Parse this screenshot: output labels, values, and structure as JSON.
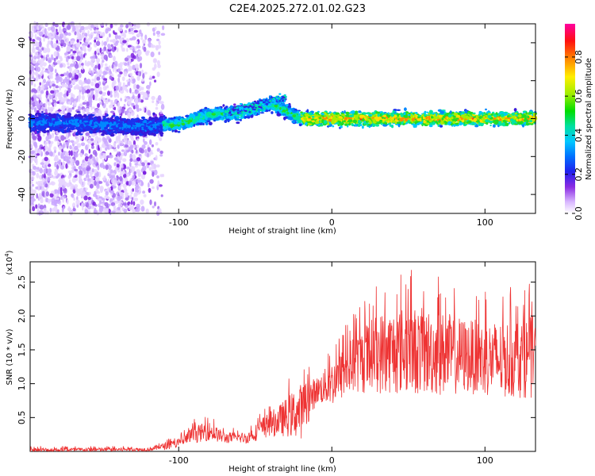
{
  "title": "C2E4.2025.272.01.02.G23",
  "chart_data": [
    {
      "type": "heatmap",
      "xlabel": "Height of straight line (km)",
      "ylabel": "Frequency (Hz)",
      "xlim": [
        -197,
        133
      ],
      "ylim": [
        -50,
        50
      ],
      "xticks": [
        -100,
        0,
        100
      ],
      "yticks": [
        -40,
        -20,
        0,
        20,
        40
      ],
      "colorbar": {
        "label": "Normalized spectral amplitude",
        "range": [
          0,
          0.97
        ],
        "ticks": [
          "0.0",
          "0.2",
          "0.4",
          "0.6",
          "0.8"
        ]
      },
      "ridge_frequency_hz": [
        {
          "x": -190,
          "y": -2
        },
        {
          "x": -160,
          "y": -3
        },
        {
          "x": -130,
          "y": -4
        },
        {
          "x": -100,
          "y": -3
        },
        {
          "x": -80,
          "y": 2
        },
        {
          "x": -60,
          "y": 3
        },
        {
          "x": -40,
          "y": 8
        },
        {
          "x": -30,
          "y": 4
        },
        {
          "x": -20,
          "y": 0
        },
        {
          "x": 0,
          "y": 0
        },
        {
          "x": 50,
          "y": 0
        },
        {
          "x": 100,
          "y": 0
        },
        {
          "x": 133,
          "y": 0
        }
      ]
    },
    {
      "type": "line",
      "xlabel": "Height of straight line (km)",
      "ylabel": "SNR (10 * v/v)",
      "yscale_label": "(x10",
      "yscale_exp": "4",
      "yscale_close": ")",
      "xlim": [
        -197,
        133
      ],
      "ylim": [
        0,
        2.8
      ],
      "xticks": [
        -100,
        0,
        100
      ],
      "yticks": [
        "0.5",
        "1.0",
        "1.5",
        "2.0",
        "2.5"
      ],
      "color": "#ee3333",
      "envelope": [
        {
          "x": -197,
          "mean": 0.02,
          "max": 0.08
        },
        {
          "x": -120,
          "mean": 0.03,
          "max": 0.08
        },
        {
          "x": -100,
          "mean": 0.12,
          "max": 0.25
        },
        {
          "x": -90,
          "mean": 0.25,
          "max": 0.48
        },
        {
          "x": -80,
          "mean": 0.3,
          "max": 0.55
        },
        {
          "x": -70,
          "mean": 0.2,
          "max": 0.35
        },
        {
          "x": -55,
          "mean": 0.2,
          "max": 0.35
        },
        {
          "x": -45,
          "mean": 0.35,
          "max": 0.65
        },
        {
          "x": -35,
          "mean": 0.45,
          "max": 0.85
        },
        {
          "x": -20,
          "mean": 0.6,
          "max": 1.35
        },
        {
          "x": -10,
          "mean": 0.9,
          "max": 1.25
        },
        {
          "x": 0,
          "mean": 1.0,
          "max": 1.6
        },
        {
          "x": 15,
          "mean": 1.3,
          "max": 2.1
        },
        {
          "x": 30,
          "mean": 1.45,
          "max": 2.55
        },
        {
          "x": 50,
          "mean": 1.5,
          "max": 2.7
        },
        {
          "x": 70,
          "mean": 1.45,
          "max": 2.6
        },
        {
          "x": 90,
          "mean": 1.4,
          "max": 2.4
        },
        {
          "x": 110,
          "mean": 1.35,
          "max": 2.4
        },
        {
          "x": 133,
          "mean": 1.4,
          "max": 2.5
        }
      ]
    }
  ]
}
